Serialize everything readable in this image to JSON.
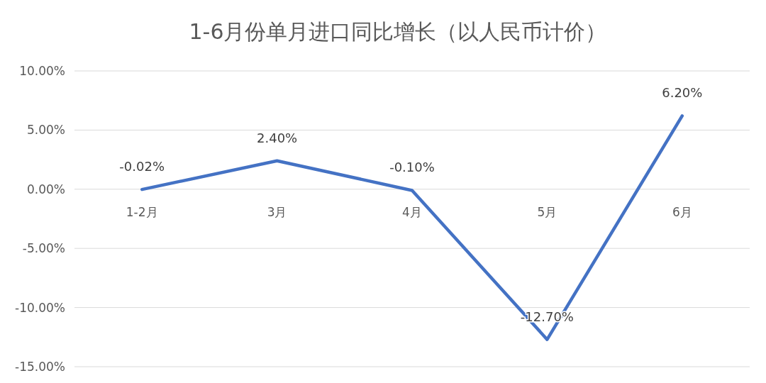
{
  "chart_data": {
    "type": "line",
    "title": "1-6月份单月进口同比增长（以人民币计价）",
    "categories": [
      "1-2月",
      "3月",
      "4月",
      "5月",
      "6月"
    ],
    "series": [
      {
        "color": "#4472c4",
        "values": [
          -0.02,
          2.4,
          -0.1,
          -12.7,
          6.2
        ],
        "value_labels": [
          "-0.02%",
          "2.40%",
          "-0.10%",
          "-12.70%",
          "6.20%"
        ]
      }
    ],
    "ylim": [
      -15,
      10
    ],
    "yticks": [
      {
        "value": -15,
        "label": "-15.00%"
      },
      {
        "value": -10,
        "label": "-10.00%"
      },
      {
        "value": -5,
        "label": "-5.00%"
      },
      {
        "value": 0,
        "label": "0.00%"
      },
      {
        "value": 5,
        "label": "5.00%"
      },
      {
        "value": 10,
        "label": "10.00%"
      }
    ],
    "grid": "y"
  }
}
